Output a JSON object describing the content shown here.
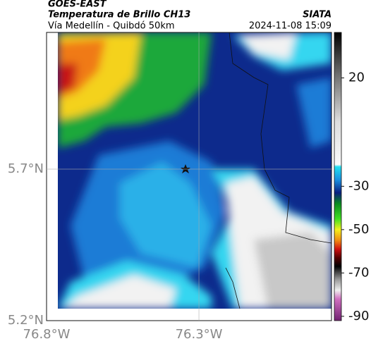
{
  "header": {
    "source": "GOES-EAST",
    "product": "Temperatura de Brillo CH13",
    "route": "Vía Medellín - Quibdó 50km",
    "agency": "SIATA",
    "timestamp": "2024-11-08 15:09"
  },
  "map": {
    "lon_extent": [
      -76.8,
      -75.865
    ],
    "lat_extent": [
      5.2,
      6.151
    ],
    "lon_ticks": [
      {
        "value": -76.8,
        "label": "76.8°W"
      },
      {
        "value": -76.3,
        "label": "76.3°W"
      }
    ],
    "lat_ticks": [
      {
        "value": 5.7,
        "label": "5.7°N"
      },
      {
        "value": 5.2,
        "label": "5.2°N"
      }
    ]
  },
  "colorbar": {
    "lim": [
      -92,
      41
    ],
    "ticks": [
      20,
      -30,
      -50,
      -70,
      -90
    ]
  }
}
